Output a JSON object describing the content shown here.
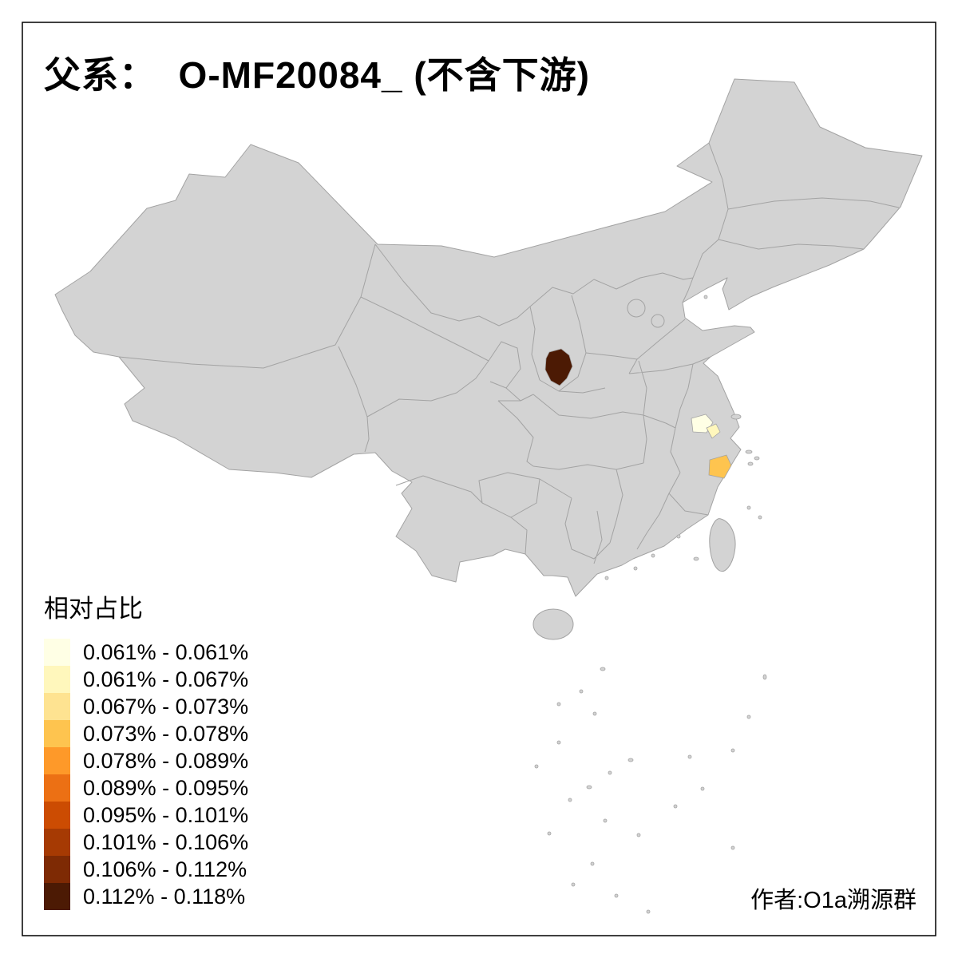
{
  "title": {
    "text": "父系：  O-MF20084_ (不含下游)"
  },
  "legend": {
    "title": "相对占比",
    "items": [
      {
        "label": "0.061% - 0.061%",
        "color": "#FFFFE5"
      },
      {
        "label": "0.061% - 0.067%",
        "color": "#FFF7BC"
      },
      {
        "label": "0.067% - 0.073%",
        "color": "#FEE391"
      },
      {
        "label": "0.073% - 0.078%",
        "color": "#FEC44F"
      },
      {
        "label": "0.078% - 0.089%",
        "color": "#FE9929"
      },
      {
        "label": "0.089% - 0.095%",
        "color": "#EC7014"
      },
      {
        "label": "0.095% - 0.101%",
        "color": "#CC4C02"
      },
      {
        "label": "0.101% - 0.106%",
        "color": "#A63A03"
      },
      {
        "label": "0.106% - 0.112%",
        "color": "#7E2A04"
      },
      {
        "label": "0.112% - 0.118%",
        "color": "#4C1A04"
      }
    ]
  },
  "credit": {
    "text": "作者:O1a溯源群"
  },
  "colors": {
    "land_fill": "#d3d3d3",
    "border_gray": "#a3a3a3",
    "background": "#ffffff",
    "frame": "#000000"
  },
  "map": {
    "highlights": [
      {
        "id": "region-1",
        "legend_class": 10,
        "color": "#4C1A04",
        "location": "central-north (Yellow River bend area)"
      },
      {
        "id": "region-2",
        "legend_class": 1,
        "color": "#FFFFE5",
        "location": "east (southern Jiangsu area)"
      },
      {
        "id": "region-3",
        "legend_class": 2,
        "color": "#FFF7BC",
        "location": "east (southern Jiangsu area, small)"
      },
      {
        "id": "region-4",
        "legend_class": 4,
        "color": "#FEC44F",
        "location": "east coast (Ningbo area)"
      }
    ]
  }
}
